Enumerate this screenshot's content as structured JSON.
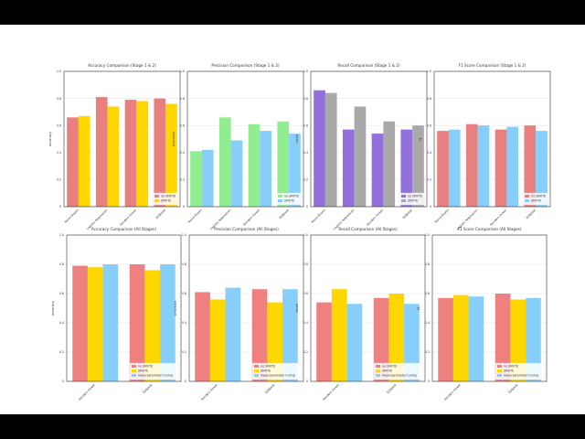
{
  "colors": {
    "no_smote_top": "#e98080",
    "smote_top": "#ffd700",
    "no_smote_bottom": "#ef8080",
    "smote_bottom": "#ffd700",
    "tuning_bottom": "#87cefa",
    "precision_no_smote": "#90ee90",
    "precision_smote": "#87cefa",
    "recall_no_smote": "#9370db",
    "recall_smote": "#a9a9a9"
  },
  "chart_data": [
    {
      "type": "bar",
      "title": "Accuracy Comparison (Stage 1 & 2)",
      "ylabel": "accuracy",
      "ylim": [
        0,
        1
      ],
      "yticks": [
        "0",
        "0.2",
        "0.4",
        "0.6",
        "0.8",
        "1.0"
      ],
      "grid": true,
      "legend_position": "lower-right",
      "categories": [
        "Naive Bayes",
        "Logistic Regression",
        "Random Forest",
        "XGBoost"
      ],
      "series": [
        {
          "name": "no SMOTE",
          "color": "#e98080",
          "values": [
            0.66,
            0.81,
            0.79,
            0.8
          ]
        },
        {
          "name": "SMOTE",
          "color": "#ffd700",
          "values": [
            0.67,
            0.74,
            0.78,
            0.76
          ]
        }
      ]
    },
    {
      "type": "bar",
      "title": "Precision Comparison (Stage 1 & 2)",
      "ylabel": "precision",
      "ylim": [
        0,
        1
      ],
      "yticks": [
        "0",
        "0.2",
        "0.4",
        "0.6",
        "0.8",
        "1.0"
      ],
      "grid": true,
      "legend_position": "lower-right",
      "categories": [
        "Naive Bayes",
        "Logistic Regression",
        "Random Forest",
        "XGBoost"
      ],
      "series": [
        {
          "name": "no SMOTE",
          "color": "#90ee90",
          "values": [
            0.41,
            0.66,
            0.61,
            0.63
          ]
        },
        {
          "name": "SMOTE",
          "color": "#87cefa",
          "values": [
            0.42,
            0.49,
            0.56,
            0.54
          ]
        }
      ]
    },
    {
      "type": "bar",
      "title": "Recall Comparison (Stage 1 & 2)",
      "ylabel": "recall",
      "ylim": [
        0,
        1
      ],
      "yticks": [
        "0",
        "0.2",
        "0.4",
        "0.6",
        "0.8",
        "1.0"
      ],
      "grid": true,
      "legend_position": "lower-right",
      "categories": [
        "Naive Bayes",
        "Logistic Regression",
        "Random Forest",
        "XGBoost"
      ],
      "series": [
        {
          "name": "no SMOTE",
          "color": "#9370db",
          "values": [
            0.86,
            0.57,
            0.54,
            0.57
          ]
        },
        {
          "name": "SMOTE",
          "color": "#a9a9a9",
          "values": [
            0.84,
            0.74,
            0.63,
            0.6
          ]
        }
      ]
    },
    {
      "type": "bar",
      "title": "F1 Score Comparison (Stage 1 & 2)",
      "ylabel": "f1",
      "ylim": [
        0,
        1
      ],
      "yticks": [
        "0",
        "0.2",
        "0.4",
        "0.6",
        "0.8",
        "1.0"
      ],
      "grid": true,
      "legend_position": "lower-right",
      "categories": [
        "Naive Bayes",
        "Logistic Regression",
        "Random Forest",
        "XGBoost"
      ],
      "series": [
        {
          "name": "no SMOTE",
          "color": "#e98080",
          "values": [
            0.56,
            0.61,
            0.57,
            0.6
          ]
        },
        {
          "name": "SMOTE",
          "color": "#87cefa",
          "values": [
            0.57,
            0.6,
            0.59,
            0.56
          ]
        }
      ]
    },
    {
      "type": "bar",
      "title": "Accuracy Comparison (All Stages)",
      "ylabel": "accuracy",
      "ylim": [
        0,
        1
      ],
      "yticks": [
        "0",
        "0.2",
        "0.4",
        "0.6",
        "0.8",
        "1.0"
      ],
      "grid": true,
      "legend_position": "lower-right",
      "categories": [
        "Random Forest",
        "XGBoost"
      ],
      "series": [
        {
          "name": "no SMOTE",
          "color": "#ef8080",
          "values": [
            0.79,
            0.8
          ]
        },
        {
          "name": "SMOTE",
          "color": "#ffd700",
          "values": [
            0.78,
            0.76
          ]
        },
        {
          "name": "Hyperparameter tuning",
          "color": "#87cefa",
          "values": [
            0.8,
            0.8
          ]
        }
      ]
    },
    {
      "type": "bar",
      "title": "Precision Comparison (All Stages)",
      "ylabel": "precision",
      "ylim": [
        0,
        1
      ],
      "yticks": [
        "0",
        "0.2",
        "0.4",
        "0.6",
        "0.8",
        "1.0"
      ],
      "grid": true,
      "legend_position": "lower-right",
      "categories": [
        "Random Forest",
        "XGBoost"
      ],
      "series": [
        {
          "name": "no SMOTE",
          "color": "#ef8080",
          "values": [
            0.61,
            0.63
          ]
        },
        {
          "name": "SMOTE",
          "color": "#ffd700",
          "values": [
            0.56,
            0.54
          ]
        },
        {
          "name": "Hyperparameter tuning",
          "color": "#87cefa",
          "values": [
            0.64,
            0.63
          ]
        }
      ]
    },
    {
      "type": "bar",
      "title": "Recall Comparison (All Stages)",
      "ylabel": "recall",
      "ylim": [
        0,
        1
      ],
      "yticks": [
        "0",
        "0.2",
        "0.4",
        "0.6",
        "0.8",
        "1.0"
      ],
      "grid": true,
      "legend_position": "lower-right",
      "categories": [
        "Random Forest",
        "XGBoost"
      ],
      "series": [
        {
          "name": "no SMOTE",
          "color": "#ef8080",
          "values": [
            0.54,
            0.57
          ]
        },
        {
          "name": "SMOTE",
          "color": "#ffd700",
          "values": [
            0.63,
            0.6
          ]
        },
        {
          "name": "Hyperparameter tuning",
          "color": "#87cefa",
          "values": [
            0.53,
            0.53
          ]
        }
      ]
    },
    {
      "type": "bar",
      "title": "F1 Score Comparison (All Stages)",
      "ylabel": "f1",
      "ylim": [
        0,
        1
      ],
      "yticks": [
        "0",
        "0.2",
        "0.4",
        "0.6",
        "0.8",
        "1.0"
      ],
      "grid": true,
      "legend_position": "lower-right",
      "categories": [
        "Random Forest",
        "XGBoost"
      ],
      "series": [
        {
          "name": "no SMOTE",
          "color": "#ef8080",
          "values": [
            0.57,
            0.6
          ]
        },
        {
          "name": "SMOTE",
          "color": "#ffd700",
          "values": [
            0.59,
            0.56
          ]
        },
        {
          "name": "Hyperparameter tuning",
          "color": "#87cefa",
          "values": [
            0.58,
            0.57
          ]
        }
      ]
    }
  ]
}
